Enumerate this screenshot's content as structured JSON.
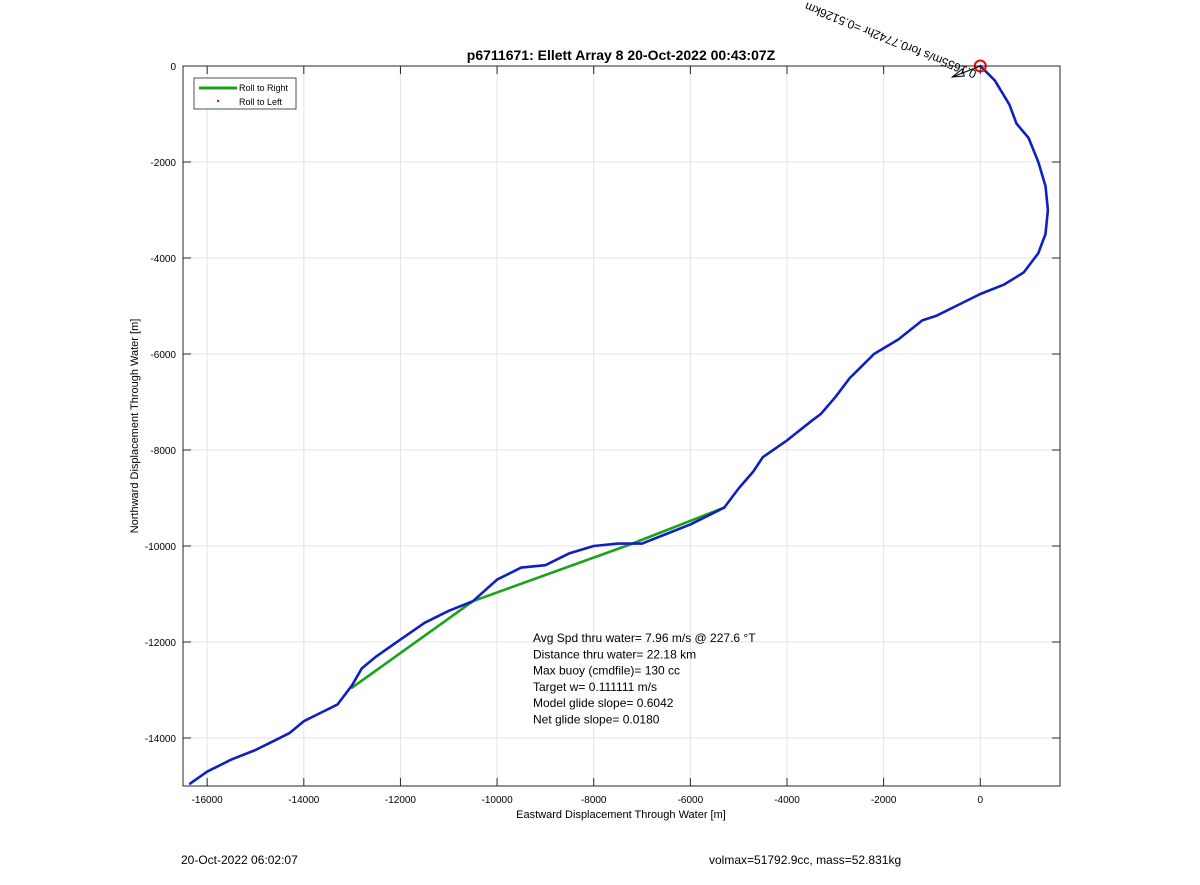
{
  "chart_data": {
    "type": "line",
    "title": "p6711671: Ellett Array 8 20-Oct-2022 00:43:07Z",
    "xlabel": "Eastward Displacement Through Water [m]",
    "ylabel": "Northward Displacement Through Water [m]",
    "xlim": [
      -16500,
      1650
    ],
    "ylim": [
      -15000,
      0
    ],
    "xticks": [
      -16000,
      -14000,
      -12000,
      -10000,
      -8000,
      -6000,
      -4000,
      -2000,
      0
    ],
    "yticks": [
      0,
      -2000,
      -4000,
      -6000,
      -8000,
      -10000,
      -12000,
      -14000
    ],
    "grid": true,
    "legend_position": "top-left",
    "legend": [
      {
        "label": "Roll to Right",
        "color": "#1aa31a",
        "style": "line"
      },
      {
        "label": "Roll to Left",
        "color": "#ff0000",
        "style": "dot"
      }
    ],
    "series": [
      {
        "name": "Roll to Right",
        "color": "#1aa31a",
        "x": [
          -5300,
          -7200,
          -10500,
          -13000
        ],
        "y": [
          -9200,
          -9950,
          -11150,
          -12950
        ]
      },
      {
        "color": "#1020c0",
        "x": [
          0,
          300,
          600,
          750,
          1000,
          1200,
          1350,
          1400,
          1350,
          1200,
          900,
          500,
          0,
          -500,
          -900,
          -1200,
          -1700,
          -2200,
          -2500,
          -2700,
          -3000,
          -3300,
          -3500,
          -4000,
          -4500,
          -4700,
          -5000,
          -5300,
          -5500,
          -6000,
          -6500,
          -7000,
          -7200,
          -7500,
          -8000,
          -8500,
          -9000,
          -9500,
          -10000,
          -10500,
          -11000,
          -11500,
          -12000,
          -12500,
          -12800,
          -13000,
          -13300,
          -13700,
          -14000,
          -14300,
          -14700,
          -15000,
          -15500,
          -16000,
          -16350
        ],
        "y": [
          0,
          -300,
          -800,
          -1200,
          -1500,
          -2000,
          -2500,
          -3000,
          -3500,
          -3900,
          -4300,
          -4550,
          -4750,
          -5000,
          -5200,
          -5300,
          -5700,
          -6000,
          -6300,
          -6500,
          -6900,
          -7250,
          -7400,
          -7800,
          -8150,
          -8450,
          -8800,
          -9200,
          -9300,
          -9550,
          -9750,
          -9950,
          -9950,
          -9950,
          -10000,
          -10150,
          -10400,
          -10450,
          -10700,
          -11150,
          -11350,
          -11600,
          -11950,
          -12300,
          -12550,
          -12900,
          -13300,
          -13500,
          -13650,
          -13900,
          -14100,
          -14250,
          -14450,
          -14700,
          -14950
        ]
      }
    ],
    "start_marker": {
      "x": 0,
      "y": 0,
      "color": "#ff0000"
    },
    "current_arrow_label": "0.1655m/s for0.7742hr =0.5126km",
    "annotations": [
      "Avg Spd thru water=  7.96 m/s @ 227.6 °T",
      "Distance thru water= 22.18 km",
      "Max buoy (cmdfile)= 130 cc",
      "Target w= 0.111111 m/s",
      "Model glide slope= 0.6042",
      "Net glide slope= 0.0180"
    ]
  },
  "footer": {
    "left": "20-Oct-2022 06:02:07",
    "right": "volmax=51792.9cc, mass=52.831kg"
  }
}
